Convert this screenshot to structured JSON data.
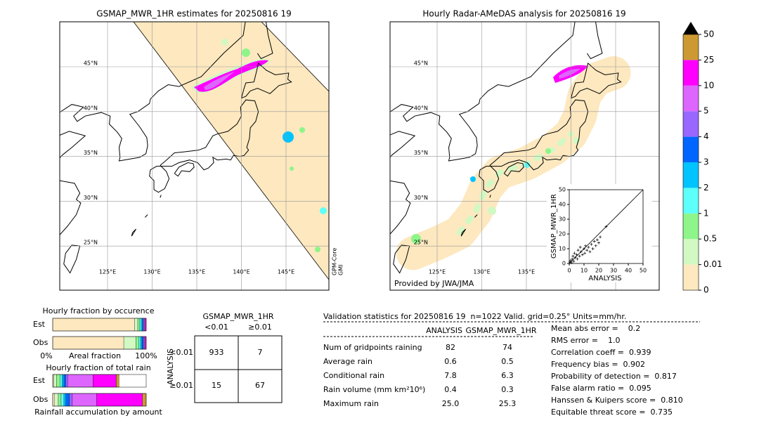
{
  "left_map": {
    "title": "GSMAP_MWR_1HR estimates for 20250816 19",
    "lat_labels": [
      "45°N",
      "40°N",
      "35°N",
      "30°N",
      "25°N"
    ],
    "lon_labels": [
      "125°E",
      "130°E",
      "135°E",
      "140°E",
      "145°E"
    ],
    "side_label": [
      "GPM-Core",
      "GMI"
    ]
  },
  "right_map": {
    "title": "Hourly Radar-AMeDAS analysis for 20250816 19",
    "lat_labels": [
      "45°N",
      "40°N",
      "35°N",
      "30°N",
      "25°N"
    ],
    "lon_labels": [
      "125°E",
      "130°E",
      "135°E"
    ],
    "credit": "Provided by JWA/JMA"
  },
  "colorbar": {
    "ticks": [
      0,
      0.01,
      0.5,
      1,
      2,
      3,
      4,
      5,
      10,
      25,
      50
    ],
    "colors": [
      "#fde8bf",
      "#d2f8c4",
      "#8ef58a",
      "#5cfffa",
      "#00c4ff",
      "#0066ff",
      "#9966ff",
      "#dd66ff",
      "#ff00ff",
      "#cc9933"
    ],
    "extend_color": "#000000"
  },
  "scatter": {
    "type": "scatter",
    "xlabel": "ANALYSIS",
    "ylabel": "GSMAP_MWR_1HR",
    "xlim": [
      0,
      50
    ],
    "ylim": [
      0,
      50
    ],
    "xticks": [
      0,
      10,
      20,
      30,
      40,
      50
    ],
    "yticks": [
      0,
      10,
      20,
      30,
      40,
      50
    ],
    "x": [
      0.5,
      1,
      1.5,
      2,
      2.5,
      3,
      3.5,
      4,
      5,
      5.5,
      6,
      7,
      7.5,
      8,
      9,
      10,
      10.5,
      11,
      12,
      13,
      14,
      15,
      16,
      17,
      18,
      19,
      20,
      21,
      25
    ],
    "y": [
      1,
      2,
      0.5,
      3,
      5,
      1.5,
      7,
      4,
      6,
      3,
      9,
      5,
      11,
      8,
      6,
      10,
      7,
      12,
      9,
      11,
      8,
      13,
      10,
      15,
      12,
      16,
      14,
      18,
      25
    ]
  },
  "occurrence": {
    "title": "Hourly fraction by occurence",
    "rows": [
      "Est",
      "Obs"
    ],
    "left_label": "0%",
    "axis_label": "Areal fraction",
    "right_label": "100%",
    "series": [
      [
        87.5,
        3.5,
        2,
        1.5,
        1.5,
        1,
        1,
        1,
        1,
        0
      ],
      [
        76,
        13,
        3,
        2,
        1.5,
        1.5,
        1,
        1,
        1,
        0
      ]
    ]
  },
  "total": {
    "title": "Hourly fraction of total rain",
    "rows": [
      "Est",
      "Obs"
    ],
    "axis_label": "Rainfall accumulation by amount",
    "series": [
      [
        1,
        3,
        4,
        2,
        2,
        2,
        2,
        27,
        25,
        3
      ],
      [
        2,
        4,
        3,
        3,
        2,
        4,
        3,
        26,
        49,
        4
      ]
    ]
  },
  "contingency": {
    "title": "GSMAP_MWR_1HR",
    "col_headers": [
      "<0.01",
      "≥0.01"
    ],
    "row_title": "ANALYSIS",
    "row_headers": [
      "<0.01",
      "≥0.01"
    ],
    "cells": [
      [
        933,
        7
      ],
      [
        15,
        67
      ]
    ]
  },
  "validation": {
    "header": "Validation statistics for 20250816 19  n=1022 Valid. grid=0.25° Units=mm/hr.",
    "columns": [
      "ANALYSIS",
      "GSMAP_MWR_1HR"
    ],
    "rows": [
      {
        "label": "Num of gridpoints raining",
        "values": [
          "82",
          "74"
        ]
      },
      {
        "label": "Average rain",
        "values": [
          "0.6",
          "0.5"
        ]
      },
      {
        "label": "Conditional rain",
        "values": [
          "7.8",
          "6.3"
        ]
      },
      {
        "label": "Rain volume (mm km²10⁶)",
        "values": [
          "0.4",
          "0.3"
        ]
      },
      {
        "label": "Maximum rain",
        "values": [
          "25.0",
          "25.3"
        ]
      }
    ],
    "scores": [
      "Mean abs error =    0.2",
      "RMS error =    1.0",
      "Correlation coeff =  0.939",
      "Frequency bias =  0.902",
      "Probability of detection =  0.817",
      "False alarm ratio =  0.095",
      "Hanssen & Kuipers score =  0.810",
      "Equitable threat score =  0.735"
    ]
  }
}
